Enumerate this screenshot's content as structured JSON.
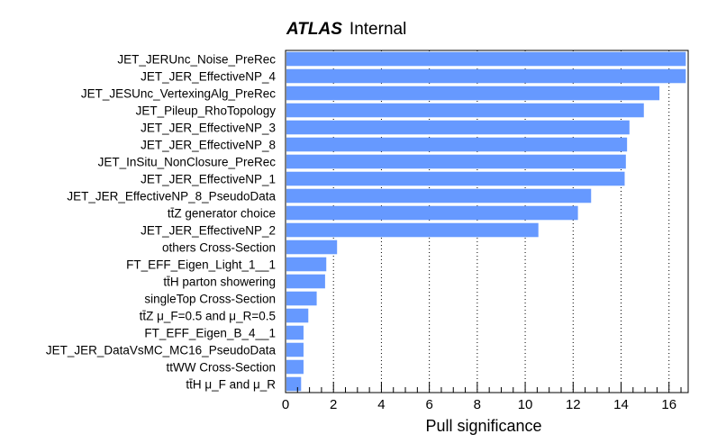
{
  "header": {
    "experiment": "ATLAS",
    "status": "Internal"
  },
  "chart_data": {
    "type": "bar",
    "orientation": "horizontal",
    "title": "",
    "xlabel": "Pull significance",
    "ylabel": "",
    "xlim": [
      0,
      16.8
    ],
    "xticks": [
      0,
      2,
      4,
      6,
      8,
      10,
      12,
      14,
      16
    ],
    "grid": "vertical dotted",
    "bar_color": "#6699ff",
    "categories": [
      "JET_JERUnc_Noise_PreRec",
      "JET_JER_EffectiveNP_4",
      "JET_JESUnc_VertexingAlg_PreRec",
      "JET_Pileup_RhoTopology",
      "JET_JER_EffectiveNP_3",
      "JET_JER_EffectiveNP_8",
      "JET_InSitu_NonClosure_PreRec",
      "JET_JER_EffectiveNP_1",
      "JET_JER_EffectiveNP_8_PseudoData",
      "tt̄Z generator choice",
      "JET_JER_EffectiveNP_2",
      "others Cross-Section",
      "FT_EFF_Eigen_Light_1__1",
      "tt̄H parton showering",
      "singleTop Cross-Section",
      "tt̄Z   μ_F=0.5 and   μ_R=0.5",
      "FT_EFF_Eigen_B_4__1",
      "JET_JER_DataVsMC_MC16_PseudoData",
      "ttWW Cross-Section",
      "tt̄H   μ_F and   μ_R"
    ],
    "values": [
      16.7,
      16.7,
      15.6,
      14.95,
      14.35,
      14.25,
      14.2,
      14.15,
      12.75,
      12.2,
      10.55,
      2.15,
      1.7,
      1.65,
      1.3,
      0.95,
      0.75,
      0.75,
      0.75,
      0.65
    ]
  }
}
